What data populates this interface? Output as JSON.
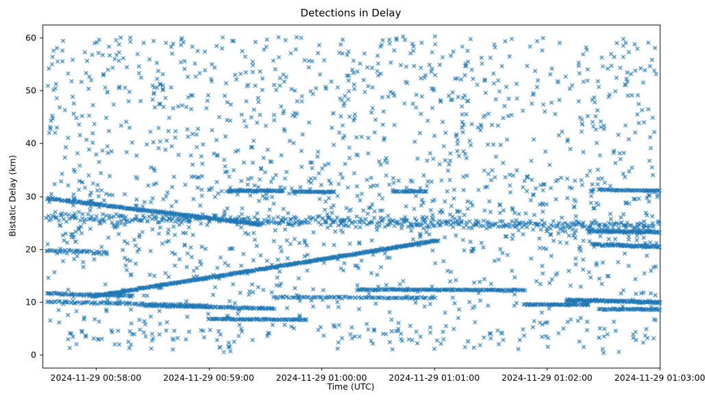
{
  "chart_data": {
    "type": "scatter",
    "title": "Detections in Delay",
    "xlabel": "Time (UTC)",
    "ylabel": "Bistatic Delay (km)",
    "marker": "x",
    "marker_color": "#1f77b4",
    "x_unit": "seconds since 2024-11-29 00:58:00 UTC",
    "xlim": [
      -28.4,
      300
    ],
    "ylim": [
      -2.5,
      62.5
    ],
    "xticks": {
      "values": [
        0,
        60,
        120,
        180,
        240,
        300
      ],
      "labels": [
        "2024-11-29 00:58:00",
        "2024-11-29 00:59:00",
        "2024-11-29 01:00:00",
        "2024-11-29 01:01:00",
        "2024-11-29 01:02:00",
        "2024-11-29 01:03:00"
      ]
    },
    "yticks": [
      0,
      10,
      20,
      30,
      40,
      50,
      60
    ],
    "seed": 42,
    "tracks": [
      {
        "x0": -26,
        "x1": 88,
        "y0": 29.6,
        "y1": 24.6,
        "n": 240,
        "jitter": 0.18
      },
      {
        "x0": -26,
        "x1": 300,
        "y0": 26.0,
        "y1": 24.3,
        "n": 430,
        "jitter": 0.9
      },
      {
        "x0": -2,
        "x1": 182,
        "y0": 11.0,
        "y1": 21.6,
        "n": 500,
        "jitter": 0.14
      },
      {
        "x0": -26,
        "x1": 20,
        "y0": 11.6,
        "y1": 11.1,
        "n": 70,
        "jitter": 0.2
      },
      {
        "x0": -26,
        "x1": 60,
        "y0": 10.0,
        "y1": 9.3,
        "n": 90,
        "jitter": 0.22
      },
      {
        "x0": 25,
        "x1": 95,
        "y0": 9.3,
        "y1": 8.7,
        "n": 110,
        "jitter": 0.15
      },
      {
        "x0": 60,
        "x1": 112,
        "y0": 6.7,
        "y1": 6.6,
        "n": 85,
        "jitter": 0.12
      },
      {
        "x0": 95,
        "x1": 180,
        "y0": 10.9,
        "y1": 10.7,
        "n": 85,
        "jitter": 0.15
      },
      {
        "x0": 140,
        "x1": 228,
        "y0": 12.3,
        "y1": 12.2,
        "n": 150,
        "jitter": 0.12
      },
      {
        "x0": 228,
        "x1": 262,
        "y0": 9.5,
        "y1": 9.4,
        "n": 70,
        "jitter": 0.12
      },
      {
        "x0": 250,
        "x1": 300,
        "y0": 10.3,
        "y1": 9.9,
        "n": 130,
        "jitter": 0.2
      },
      {
        "x0": 268,
        "x1": 300,
        "y0": 8.6,
        "y1": 8.5,
        "n": 60,
        "jitter": 0.15
      },
      {
        "x0": 70,
        "x1": 100,
        "y0": 31.0,
        "y1": 31.0,
        "n": 70,
        "jitter": 0.1
      },
      {
        "x0": 105,
        "x1": 127,
        "y0": 30.9,
        "y1": 30.8,
        "n": 45,
        "jitter": 0.1
      },
      {
        "x0": 158,
        "x1": 176,
        "y0": 30.9,
        "y1": 30.9,
        "n": 32,
        "jitter": 0.1
      },
      {
        "x0": 268,
        "x1": 300,
        "y0": 31.2,
        "y1": 31.0,
        "n": 55,
        "jitter": 0.12
      },
      {
        "x0": 262,
        "x1": 300,
        "y0": 23.4,
        "y1": 23.2,
        "n": 90,
        "jitter": 0.25
      },
      {
        "x0": 264,
        "x1": 300,
        "y0": 20.8,
        "y1": 20.4,
        "n": 75,
        "jitter": 0.2
      },
      {
        "x0": -26,
        "x1": 6,
        "y0": 19.6,
        "y1": 19.3,
        "n": 45,
        "jitter": 0.35
      }
    ],
    "noise_clusters": [
      {
        "count": 1250,
        "x_range": [
          -26,
          299
        ],
        "y_range": [
          1.0,
          60.3
        ]
      },
      {
        "count": 260,
        "x_range": [
          -26,
          299
        ],
        "y_range": [
          20,
          34
        ]
      },
      {
        "count": 120,
        "x_range": [
          -26,
          299
        ],
        "y_range": [
          44,
          60
        ]
      },
      {
        "count": 55,
        "x_range": [
          -26,
          299
        ],
        "y_range": [
          0.3,
          5
        ]
      }
    ]
  }
}
